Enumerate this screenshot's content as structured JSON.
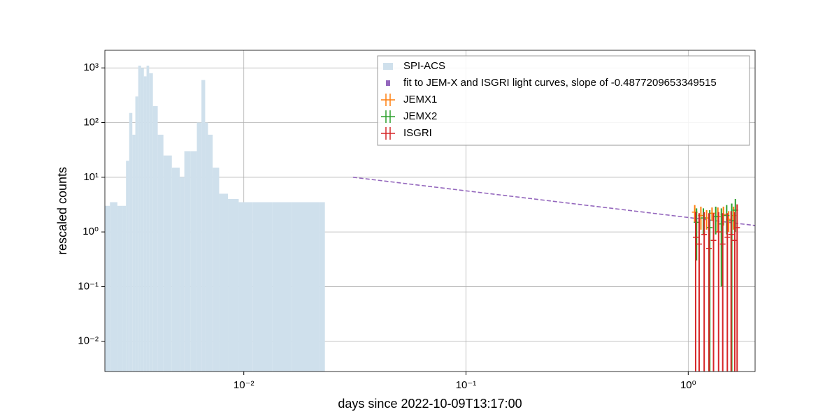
{
  "chart_data": {
    "type": "line",
    "xlabel": "days since 2022-10-09T13:17:00",
    "ylabel": "rescaled counts",
    "xscale": "log",
    "yscale": "log",
    "xlim": [
      0.00237,
      2
    ],
    "ylim": [
      0.0028,
      2100
    ],
    "xticks": [
      {
        "value": 0.01,
        "label": "10⁻²"
      },
      {
        "value": 0.1,
        "label": "10⁻¹"
      },
      {
        "value": 1,
        "label": "10⁰"
      }
    ],
    "yticks": [
      {
        "value": 0.01,
        "label": "10⁻²"
      },
      {
        "value": 0.1,
        "label": "10⁻¹"
      },
      {
        "value": 1,
        "label": "10⁰"
      },
      {
        "value": 10,
        "label": "10¹"
      },
      {
        "value": 100,
        "label": "10²"
      },
      {
        "value": 1000,
        "label": "10³"
      }
    ],
    "grid": true,
    "legend": "upper right",
    "series": [
      {
        "name": "SPI-ACS",
        "type": "area",
        "color": "#cfe0ec",
        "x": [
          0.0024,
          0.0026,
          0.0028,
          0.0029,
          0.003,
          0.0031,
          0.0032,
          0.0033,
          0.0034,
          0.0035,
          0.0036,
          0.0037,
          0.0038,
          0.004,
          0.0042,
          0.0045,
          0.005,
          0.0053,
          0.0055,
          0.006,
          0.0063,
          0.0066,
          0.0068,
          0.007,
          0.0075,
          0.008,
          0.009,
          0.01,
          0.012,
          0.015,
          0.018,
          0.021,
          0.023
        ],
        "values": [
          3,
          3.5,
          3,
          3,
          20,
          150,
          60,
          300,
          1100,
          1000,
          700,
          1100,
          800,
          200,
          60,
          25,
          15,
          10,
          30,
          30,
          100,
          600,
          100,
          60,
          15,
          5,
          4,
          3.5,
          3.5,
          3.5,
          3.5,
          3.5,
          3.5
        ]
      },
      {
        "name": "fit to JEM-X and ISGRI light curves, slope of -0.4877209653349515",
        "type": "line",
        "color": "#9467bd",
        "x": [
          0.031,
          2
        ],
        "values": [
          10,
          1.31
        ]
      },
      {
        "name": "JEMX1",
        "type": "errorbar",
        "color": "#ff7f0e",
        "x": [
          1.07,
          1.14,
          1.21,
          1.28,
          1.36,
          1.44,
          1.52,
          1.6
        ],
        "values": [
          2.3,
          2.0,
          1.8,
          2.2,
          1.9,
          2.1,
          1.7,
          2.0
        ],
        "errors": [
          0.8,
          0.9,
          0.7,
          0.6,
          0.9,
          0.8,
          0.7,
          0.9
        ]
      },
      {
        "name": "JEMX2",
        "type": "errorbar",
        "color": "#2ca02c",
        "x": [
          1.09,
          1.17,
          1.25,
          1.33,
          1.41,
          1.49,
          1.57,
          1.63
        ],
        "values": [
          1.5,
          1.8,
          1.2,
          1.9,
          1.4,
          2.0,
          1.6,
          2.5
        ],
        "errors": [
          1.2,
          0.9,
          1.3,
          1.0,
          1.3,
          1.1,
          1.7,
          1.5
        ]
      },
      {
        "name": "ISGRI",
        "type": "errorbar",
        "color": "#d62728",
        "x": [
          1.08,
          1.12,
          1.18,
          1.24,
          1.3,
          1.37,
          1.43,
          1.5,
          1.56,
          1.62,
          1.66
        ],
        "values": [
          0.8,
          0.6,
          0.9,
          0.5,
          0.7,
          1.0,
          0.6,
          0.8,
          0.9,
          0.7,
          1.2
        ],
        "errors": [
          1.5,
          1.6,
          1.4,
          1.7,
          1.5,
          1.3,
          1.6,
          1.4,
          1.5,
          1.6,
          2.0
        ]
      }
    ]
  }
}
